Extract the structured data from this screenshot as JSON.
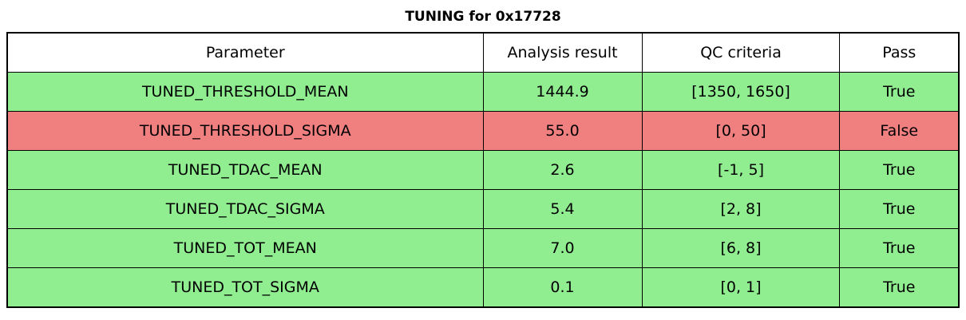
{
  "title": "TUNING for 0x17728",
  "colors": {
    "pass_row_bg": "#90EE90",
    "fail_row_bg": "#F08080",
    "header_bg": "#FFFFFF",
    "border": "#000000",
    "text": "#000000"
  },
  "table": {
    "columns": [
      "Parameter",
      "Analysis result",
      "QC criteria",
      "Pass"
    ],
    "rows": [
      {
        "parameter": "TUNED_THRESHOLD_MEAN",
        "result": "1444.9",
        "criteria": "[1350, 1650]",
        "pass": "True",
        "status": "pass"
      },
      {
        "parameter": "TUNED_THRESHOLD_SIGMA",
        "result": "55.0",
        "criteria": "[0, 50]",
        "pass": "False",
        "status": "fail"
      },
      {
        "parameter": "TUNED_TDAC_MEAN",
        "result": "2.6",
        "criteria": "[-1, 5]",
        "pass": "True",
        "status": "pass"
      },
      {
        "parameter": "TUNED_TDAC_SIGMA",
        "result": "5.4",
        "criteria": "[2, 8]",
        "pass": "True",
        "status": "pass"
      },
      {
        "parameter": "TUNED_TOT_MEAN",
        "result": "7.0",
        "criteria": "[6, 8]",
        "pass": "True",
        "status": "pass"
      },
      {
        "parameter": "TUNED_TOT_SIGMA",
        "result": "0.1",
        "criteria": "[0, 1]",
        "pass": "True",
        "status": "pass"
      }
    ]
  },
  "chart_data": {
    "type": "table",
    "title": "TUNING for 0x17728",
    "columns": [
      "Parameter",
      "Analysis result",
      "QC criteria",
      "Pass"
    ],
    "rows": [
      [
        "TUNED_THRESHOLD_MEAN",
        1444.9,
        "[1350, 1650]",
        true
      ],
      [
        "TUNED_THRESHOLD_SIGMA",
        55.0,
        "[0, 50]",
        false
      ],
      [
        "TUNED_TDAC_MEAN",
        2.6,
        "[-1, 5]",
        true
      ],
      [
        "TUNED_TDAC_SIGMA",
        5.4,
        "[2, 8]",
        true
      ],
      [
        "TUNED_TOT_MEAN",
        7.0,
        "[6, 8]",
        true
      ],
      [
        "TUNED_TOT_SIGMA",
        0.1,
        "[0, 1]",
        true
      ]
    ],
    "row_status": [
      "pass",
      "fail",
      "pass",
      "pass",
      "pass",
      "pass"
    ],
    "legend_position": "none",
    "grid": "full-cell-borders"
  }
}
